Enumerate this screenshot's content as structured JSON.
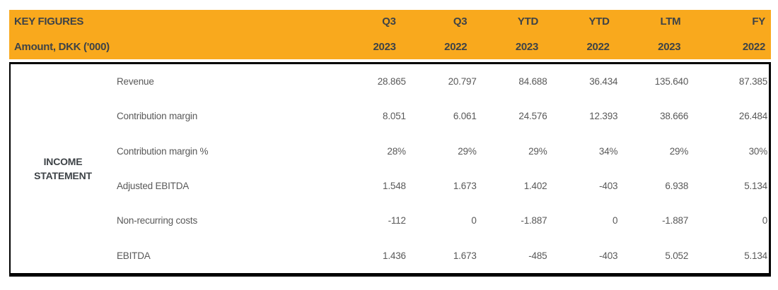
{
  "header": {
    "title": "KEY FIGURES",
    "subtitle": "Amount, DKK ('000)",
    "columns": [
      {
        "period": "Q3",
        "year": "2023"
      },
      {
        "period": "Q3",
        "year": "2022"
      },
      {
        "period": "YTD",
        "year": "2023"
      },
      {
        "period": "YTD",
        "year": "2022"
      },
      {
        "period": "LTM",
        "year": "2023"
      },
      {
        "period": "FY",
        "year": "2022"
      }
    ]
  },
  "section": {
    "label_line1": "INCOME",
    "label_line2": "STATEMENT"
  },
  "rows": [
    {
      "label": "Revenue",
      "values": [
        "28.865",
        "20.797",
        "84.688",
        "36.434",
        "135.640",
        "87.385"
      ]
    },
    {
      "label": "Contribution margin",
      "values": [
        "8.051",
        "6.061",
        "24.576",
        "12.393",
        "38.666",
        "26.484"
      ]
    },
    {
      "label": "Contribution margin %",
      "values": [
        "28%",
        "29%",
        "29%",
        "34%",
        "29%",
        "30%"
      ]
    },
    {
      "label": "Adjusted EBITDA",
      "values": [
        "1.548",
        "1.673",
        "1.402",
        "-403",
        "6.938",
        "5.134"
      ]
    },
    {
      "label": "Non-recurring costs",
      "values": [
        "-112",
        "0",
        "-1.887",
        "0",
        "-1.887",
        "0"
      ]
    },
    {
      "label": "EBITDA",
      "values": [
        "1.436",
        "1.673",
        "-485",
        "-403",
        "5.052",
        "5.134"
      ]
    }
  ],
  "colors": {
    "header_bg": "#F9A91D",
    "header_text": "#3E4347",
    "body_text": "#595959",
    "border": "#000000"
  }
}
